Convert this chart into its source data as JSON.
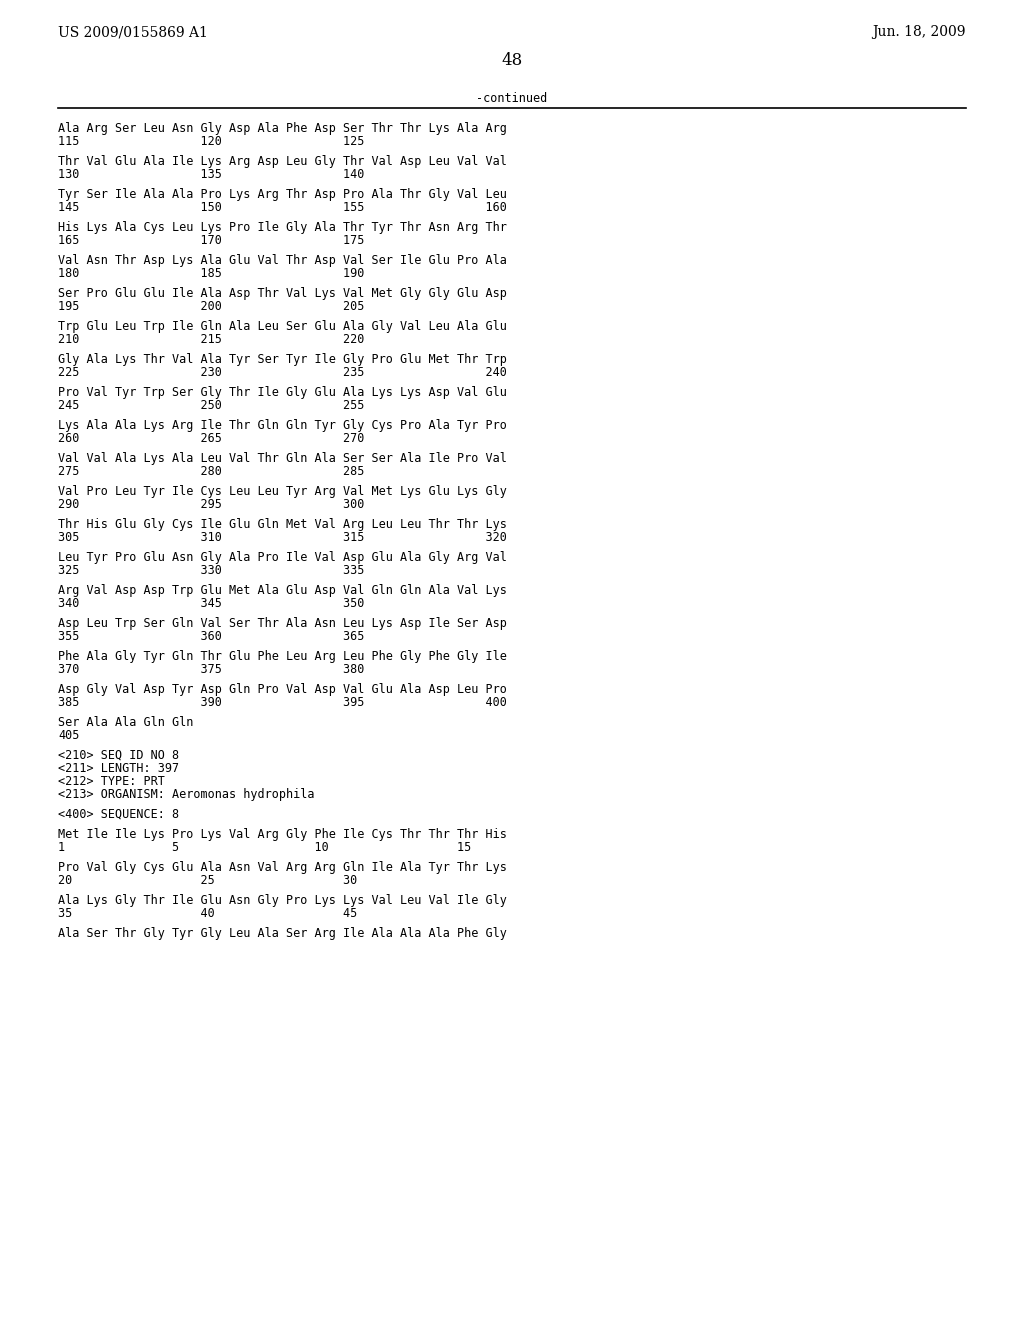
{
  "left_header": "US 2009/0155869 A1",
  "right_header": "Jun. 18, 2009",
  "page_number": "48",
  "continued_label": "-continued",
  "background_color": "#ffffff",
  "text_color": "#000000",
  "font_size": 8.5,
  "header_font_size": 10.0,
  "lines": [
    "Ala Arg Ser Leu Asn Gly Asp Ala Phe Asp Ser Thr Thr Lys Ala Arg",
    "115                 120                 125",
    "",
    "Thr Val Glu Ala Ile Lys Arg Asp Leu Gly Thr Val Asp Leu Val Val",
    "130                 135                 140",
    "",
    "Tyr Ser Ile Ala Ala Pro Lys Arg Thr Asp Pro Ala Thr Gly Val Leu",
    "145                 150                 155                 160",
    "",
    "His Lys Ala Cys Leu Lys Pro Ile Gly Ala Thr Tyr Thr Asn Arg Thr",
    "165                 170                 175",
    "",
    "Val Asn Thr Asp Lys Ala Glu Val Thr Asp Val Ser Ile Glu Pro Ala",
    "180                 185                 190",
    "",
    "Ser Pro Glu Glu Ile Ala Asp Thr Val Lys Val Met Gly Gly Glu Asp",
    "195                 200                 205",
    "",
    "Trp Glu Leu Trp Ile Gln Ala Leu Ser Glu Ala Gly Val Leu Ala Glu",
    "210                 215                 220",
    "",
    "Gly Ala Lys Thr Val Ala Tyr Ser Tyr Ile Gly Pro Glu Met Thr Trp",
    "225                 230                 235                 240",
    "",
    "Pro Val Tyr Trp Ser Gly Thr Ile Gly Glu Ala Lys Lys Asp Val Glu",
    "245                 250                 255",
    "",
    "Lys Ala Ala Lys Arg Ile Thr Gln Gln Tyr Gly Cys Pro Ala Tyr Pro",
    "260                 265                 270",
    "",
    "Val Val Ala Lys Ala Leu Val Thr Gln Ala Ser Ser Ala Ile Pro Val",
    "275                 280                 285",
    "",
    "Val Pro Leu Tyr Ile Cys Leu Leu Tyr Arg Val Met Lys Glu Lys Gly",
    "290                 295                 300",
    "",
    "Thr His Glu Gly Cys Ile Glu Gln Met Val Arg Leu Leu Thr Thr Lys",
    "305                 310                 315                 320",
    "",
    "Leu Tyr Pro Glu Asn Gly Ala Pro Ile Val Asp Glu Ala Gly Arg Val",
    "325                 330                 335",
    "",
    "Arg Val Asp Asp Trp Glu Met Ala Glu Asp Val Gln Gln Ala Val Lys",
    "340                 345                 350",
    "",
    "Asp Leu Trp Ser Gln Val Ser Thr Ala Asn Leu Lys Asp Ile Ser Asp",
    "355                 360                 365",
    "",
    "Phe Ala Gly Tyr Gln Thr Glu Phe Leu Arg Leu Phe Gly Phe Gly Ile",
    "370                 375                 380",
    "",
    "Asp Gly Val Asp Tyr Asp Gln Pro Val Asp Val Glu Ala Asp Leu Pro",
    "385                 390                 395                 400",
    "",
    "Ser Ala Ala Gln Gln",
    "405",
    "",
    "<210> SEQ ID NO 8",
    "<211> LENGTH: 397",
    "<212> TYPE: PRT",
    "<213> ORGANISM: Aeromonas hydrophila",
    "",
    "<400> SEQUENCE: 8",
    "",
    "Met Ile Ile Lys Pro Lys Val Arg Gly Phe Ile Cys Thr Thr Thr His",
    "1               5                   10                  15",
    "",
    "Pro Val Gly Cys Glu Ala Asn Val Arg Arg Gln Ile Ala Tyr Thr Lys",
    "20                  25                  30",
    "",
    "Ala Lys Gly Thr Ile Glu Asn Gly Pro Lys Lys Val Leu Val Ile Gly",
    "35                  40                  45",
    "",
    "Ala Ser Thr Gly Tyr Gly Leu Ala Ser Arg Ile Ala Ala Ala Phe Gly"
  ]
}
